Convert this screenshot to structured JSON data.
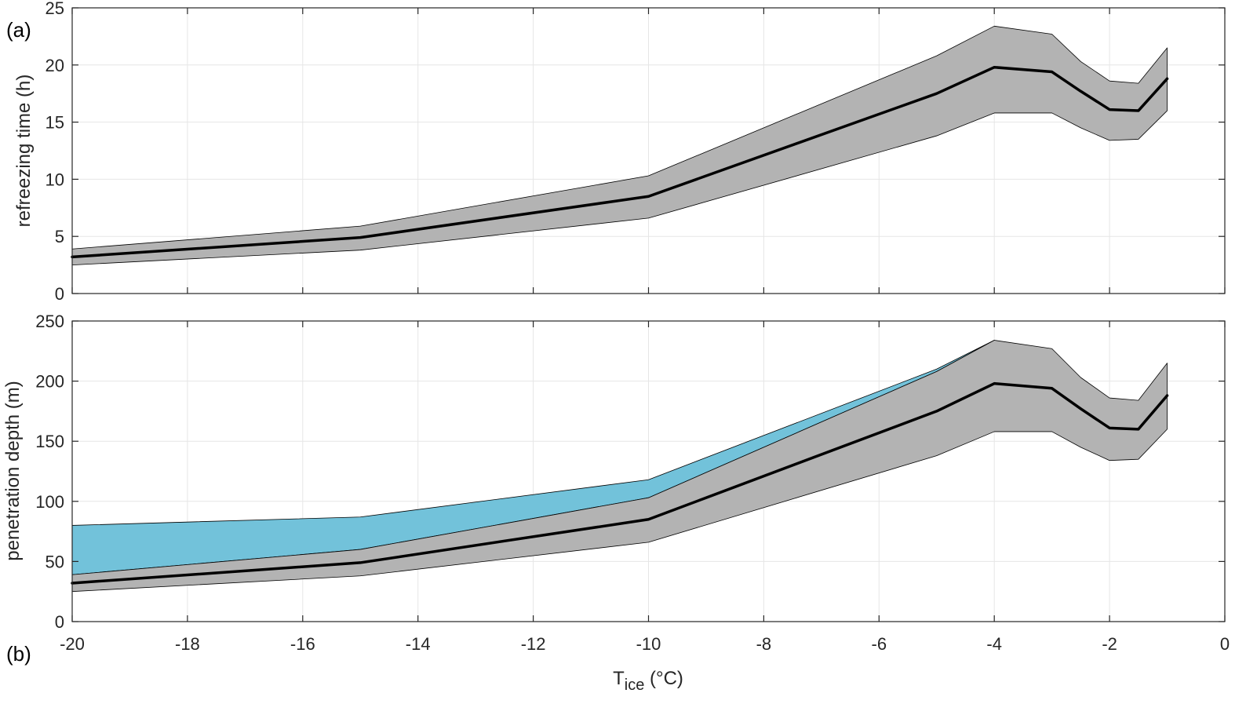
{
  "chart_data": [
    {
      "panel_label": "(a)",
      "type": "line",
      "ylabel": "refreezing time (h)",
      "xlim": [
        -20,
        0
      ],
      "ylim": [
        0,
        25
      ],
      "xticks": [
        -20,
        -18,
        -16,
        -14,
        -12,
        -10,
        -8,
        -6,
        -4,
        -2,
        0
      ],
      "yticks": [
        0,
        5,
        10,
        15,
        20,
        25
      ],
      "grid": true,
      "x": [
        -20,
        -15,
        -10,
        -5,
        -4,
        -3,
        -2.5,
        -2,
        -1.5,
        -1
      ],
      "series": [
        {
          "role": "mean",
          "values": [
            3.2,
            4.9,
            8.5,
            17.5,
            19.8,
            19.4,
            17.7,
            16.1,
            16.0,
            18.8
          ]
        }
      ],
      "bands": [
        {
          "role": "range",
          "lower": [
            2.5,
            3.8,
            6.6,
            13.8,
            15.8,
            15.8,
            14.5,
            13.4,
            13.5,
            16.0
          ],
          "upper": [
            3.9,
            5.9,
            10.3,
            20.8,
            23.4,
            22.7,
            20.3,
            18.6,
            18.4,
            21.5
          ]
        }
      ]
    },
    {
      "panel_label": "(b)",
      "type": "line",
      "ylabel": "penetration depth (m)",
      "xlabel_main": "T",
      "xlabel_sub": "ice",
      "xlabel_unit": " (°C)",
      "xlim": [
        -20,
        0
      ],
      "ylim": [
        0,
        250
      ],
      "xticks": [
        -20,
        -18,
        -16,
        -14,
        -12,
        -10,
        -8,
        -6,
        -4,
        -2,
        0
      ],
      "yticks": [
        0,
        50,
        100,
        150,
        200,
        250
      ],
      "grid": true,
      "x": [
        -20,
        -15,
        -10,
        -5,
        -4,
        -3,
        -2.5,
        -2,
        -1.5,
        -1
      ],
      "series": [
        {
          "role": "mean",
          "values": [
            32,
            49,
            85,
            175,
            198,
            194,
            177,
            161,
            160,
            188
          ]
        }
      ],
      "bands": [
        {
          "role": "range",
          "lower": [
            25,
            38,
            66,
            138,
            158,
            158,
            145,
            134,
            135,
            160
          ],
          "upper": [
            39,
            60,
            103,
            208,
            234,
            227,
            203,
            186,
            184,
            215
          ]
        },
        {
          "role": "extended",
          "x": [
            -20,
            -15,
            -10,
            -5,
            -4
          ],
          "lower": [
            39,
            60,
            103,
            208,
            234
          ],
          "upper": [
            80,
            87,
            118,
            210,
            234
          ]
        }
      ]
    }
  ],
  "colors": {
    "range_fill": "#b3b3b3",
    "extended_fill": "#72c2da",
    "mean_line": "#000000",
    "grid": "#e6e6e6",
    "axes": "#262626"
  }
}
